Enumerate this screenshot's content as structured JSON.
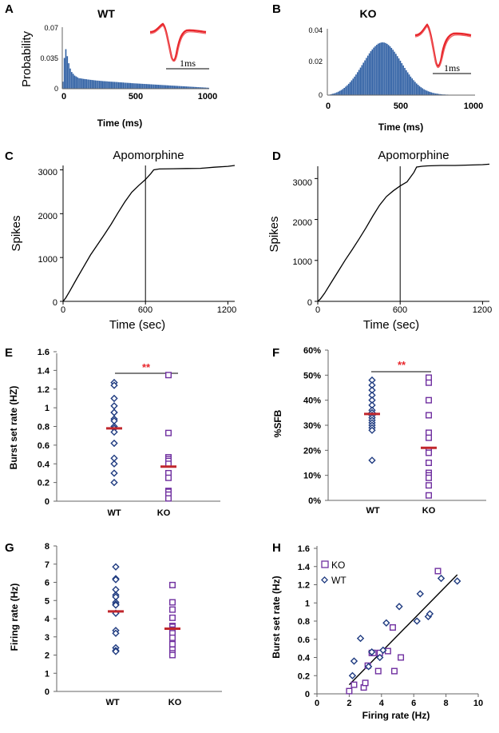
{
  "colors": {
    "wt": "#1f3b80",
    "ko": "#7030a0",
    "hist": "#2e5fa3",
    "mean": "#c0272d",
    "wave": "#e8262b",
    "sig": "#e8262b"
  },
  "panels": {
    "A": "A",
    "B": "B",
    "C": "C",
    "D": "D",
    "E": "E",
    "F": "F",
    "G": "G",
    "H": "H"
  },
  "scale_bar": "1ms",
  "chart_data": [
    {
      "id": "A",
      "type": "bar",
      "title": "WT",
      "xlabel": "Time (ms)",
      "ylabel": "Probability",
      "xlim": [
        0,
        1000
      ],
      "ylim": [
        0,
        0.07
      ],
      "xticks": [
        "0",
        "500",
        "1000"
      ],
      "yticks": [
        "0",
        "0.035",
        "0.07"
      ],
      "bin_width": 10,
      "values": [
        0.008,
        0.035,
        0.045,
        0.037,
        0.029,
        0.023,
        0.019,
        0.017,
        0.015,
        0.014,
        0.013,
        0.012,
        0.0118,
        0.0115,
        0.0112,
        0.011,
        0.0108,
        0.0105,
        0.0103,
        0.0101,
        0.0099,
        0.0097,
        0.0095,
        0.0093,
        0.0092,
        0.009,
        0.0089,
        0.0087,
        0.0086,
        0.0085,
        0.0084,
        0.0082,
        0.0081,
        0.008,
        0.0079,
        0.0078,
        0.0077,
        0.0076,
        0.0074,
        0.0073,
        0.0072,
        0.0071,
        0.0069,
        0.0068,
        0.0067,
        0.0066,
        0.0065,
        0.0063,
        0.0062,
        0.0061,
        0.006,
        0.0059,
        0.0058,
        0.0057,
        0.0056,
        0.0055,
        0.0054,
        0.0053,
        0.0052,
        0.0051,
        0.005,
        0.0049,
        0.0048,
        0.0047,
        0.0046,
        0.0045,
        0.0044,
        0.0043,
        0.0042,
        0.0041,
        0.004,
        0.0039,
        0.0038,
        0.0037,
        0.0036,
        0.0035,
        0.0034,
        0.0033,
        0.0032,
        0.0031,
        0.003,
        0.0029,
        0.0028,
        0.0027,
        0.0026,
        0.0025,
        0.0024,
        0.0023,
        0.0022,
        0.0021,
        0.002,
        0.0019,
        0.0018,
        0.0017,
        0.0016,
        0.0015,
        0.0014,
        0.0013,
        0.0012,
        0.0011
      ]
    },
    {
      "id": "B",
      "type": "bar",
      "title": "KO",
      "xlabel": "Time (ms)",
      "ylabel": "",
      "xlim": [
        0,
        1000
      ],
      "ylim": [
        0,
        0.04
      ],
      "xticks": [
        "0",
        "500",
        "1000"
      ],
      "yticks": [
        "0",
        "0.02",
        "0.04"
      ],
      "bin_width": 10,
      "values": [
        0.0002,
        0.0003,
        0.0005,
        0.0008,
        0.001,
        0.0013,
        0.0017,
        0.0021,
        0.0026,
        0.0031,
        0.0037,
        0.0044,
        0.0052,
        0.006,
        0.0069,
        0.0079,
        0.009,
        0.0101,
        0.0113,
        0.0126,
        0.014,
        0.0154,
        0.0168,
        0.0183,
        0.0198,
        0.0212,
        0.0227,
        0.0241,
        0.0255,
        0.0268,
        0.0279,
        0.029,
        0.0299,
        0.0307,
        0.0314,
        0.0318,
        0.0321,
        0.0322,
        0.0321,
        0.0318,
        0.0313,
        0.0306,
        0.0298,
        0.0288,
        0.0277,
        0.0265,
        0.0252,
        0.0238,
        0.0224,
        0.021,
        0.0195,
        0.0181,
        0.0166,
        0.0152,
        0.0139,
        0.0126,
        0.0113,
        0.0102,
        0.0091,
        0.0081,
        0.0071,
        0.0063,
        0.0055,
        0.0048,
        0.0042,
        0.0036,
        0.0031,
        0.0027,
        0.0023,
        0.002,
        0.0017,
        0.0014,
        0.0012,
        0.001,
        0.0009,
        0.0007,
        0.0006,
        0.0005,
        0.0004,
        0.0004,
        0.0003,
        0.0003,
        0.0002,
        0.0002,
        0.0002,
        0.0001,
        0.0001,
        0.0001,
        0.0001,
        0.0001,
        0.0001,
        0.0001,
        0.0001,
        0,
        0,
        0,
        0,
        0,
        0,
        0
      ]
    },
    {
      "id": "C",
      "type": "line",
      "title": "Apomorphine",
      "xlabel": "Time (sec)",
      "ylabel": "Spikes",
      "xlim": [
        0,
        1250
      ],
      "ylim": [
        0,
        3100
      ],
      "xticks": [
        "0",
        "600",
        "1200"
      ],
      "yticks": [
        "0",
        "1000",
        "2000",
        "3000"
      ],
      "marker_x": 600,
      "x": [
        0,
        20,
        50,
        100,
        150,
        200,
        250,
        300,
        350,
        400,
        450,
        500,
        550,
        600,
        640,
        660,
        700,
        800,
        900,
        1000,
        1100,
        1200,
        1250
      ],
      "y": [
        0,
        80,
        240,
        520,
        790,
        1060,
        1290,
        1520,
        1760,
        2020,
        2270,
        2490,
        2640,
        2780,
        2920,
        3000,
        3020,
        3025,
        3030,
        3035,
        3060,
        3080,
        3100
      ]
    },
    {
      "id": "D",
      "type": "line",
      "title": "Apomorphine",
      "xlabel": "Time (sec)",
      "ylabel": "Spikes",
      "xlim": [
        0,
        1250
      ],
      "ylim": [
        0,
        3300
      ],
      "xticks": [
        "0",
        "600",
        "1200"
      ],
      "yticks": [
        "0",
        "1000",
        "2000",
        "3000"
      ],
      "marker_x": 600,
      "x": [
        0,
        20,
        50,
        100,
        150,
        200,
        250,
        300,
        350,
        400,
        450,
        500,
        550,
        600,
        650,
        700,
        720,
        760,
        800,
        900,
        1000,
        1100,
        1200,
        1250
      ],
      "y": [
        0,
        60,
        200,
        470,
        740,
        1010,
        1260,
        1520,
        1790,
        2080,
        2350,
        2560,
        2700,
        2820,
        2920,
        3150,
        3280,
        3300,
        3310,
        3320,
        3320,
        3330,
        3340,
        3350
      ]
    },
    {
      "id": "E",
      "type": "scatter",
      "ylabel": "Burst set rate (HZ)",
      "categories": [
        "WT",
        "KO"
      ],
      "ylim": [
        0,
        1.6
      ],
      "yticks": [
        "0",
        "0.2",
        "0.4",
        "0.6",
        "0.8",
        "1",
        "1.2",
        "1.4",
        "1.6"
      ],
      "significance": "**",
      "series": [
        {
          "name": "WT",
          "values": [
            1.27,
            1.24,
            1.1,
            1.02,
            0.95,
            0.95,
            0.88,
            0.86,
            0.8,
            0.78,
            0.74,
            0.62,
            0.46,
            0.4,
            0.3,
            0.2
          ],
          "mean": 0.78
        },
        {
          "name": "KO",
          "values": [
            1.35,
            0.73,
            0.47,
            0.45,
            0.43,
            0.4,
            0.3,
            0.25,
            0.11,
            0.1,
            0.07,
            0.03
          ],
          "mean": 0.37
        }
      ]
    },
    {
      "id": "F",
      "type": "scatter",
      "ylabel": "%SFB",
      "categories": [
        "WT",
        "KO"
      ],
      "ylim": [
        0,
        60
      ],
      "yticks": [
        "0%",
        "10%",
        "20%",
        "30%",
        "40%",
        "50%",
        "60%"
      ],
      "significance": "**",
      "series": [
        {
          "name": "WT",
          "values": [
            48,
            46,
            44,
            42,
            40,
            38,
            36,
            35,
            34,
            33,
            32,
            31,
            30,
            29,
            28,
            16
          ],
          "mean": 34.5
        },
        {
          "name": "KO",
          "values": [
            49,
            47,
            40,
            34,
            27,
            25,
            20,
            19,
            15,
            11,
            10,
            9,
            6,
            2
          ],
          "mean": 21
        }
      ]
    },
    {
      "id": "G",
      "type": "scatter",
      "ylabel": "Firing rate (Hz)",
      "categories": [
        "WT",
        "KO"
      ],
      "ylim": [
        0,
        8
      ],
      "yticks": [
        "0",
        "1",
        "2",
        "3",
        "4",
        "5",
        "6",
        "7",
        "8"
      ],
      "series": [
        {
          "name": "WT",
          "values": [
            6.85,
            6.2,
            6.15,
            5.6,
            5.3,
            5.2,
            4.9,
            4.8,
            4.75,
            4.3,
            3.35,
            3.2,
            2.4,
            2.25,
            2.2
          ],
          "mean": 4.4
        },
        {
          "name": "KO",
          "values": [
            5.85,
            4.9,
            4.5,
            4.05,
            3.6,
            3.55,
            3.4,
            3.2,
            2.95,
            2.6,
            2.3,
            2.1,
            2.0
          ],
          "mean": 3.45
        }
      ]
    },
    {
      "id": "H",
      "type": "scatter",
      "xlabel": "Firing rate (Hz)",
      "ylabel": "Burst set rate (Hz)",
      "xlim": [
        0,
        10
      ],
      "ylim": [
        0,
        1.6
      ],
      "xticks": [
        "0",
        "2",
        "4",
        "6",
        "8",
        "10"
      ],
      "yticks": [
        "0",
        "0.2",
        "0.4",
        "0.6",
        "0.8",
        "1",
        "1.2",
        "1.4",
        "1.6"
      ],
      "legend": [
        "KO",
        "WT"
      ],
      "trendline": {
        "x": [
          2.0,
          8.7
        ],
        "y": [
          0.1,
          1.31
        ]
      },
      "series": [
        {
          "name": "KO",
          "x": [
            2.0,
            2.3,
            2.9,
            3.0,
            3.15,
            3.4,
            3.5,
            3.8,
            3.9,
            4.4,
            4.7,
            4.8,
            5.2,
            7.5
          ],
          "y": [
            0.03,
            0.1,
            0.07,
            0.12,
            0.31,
            0.45,
            0.45,
            0.25,
            0.45,
            0.47,
            0.73,
            0.25,
            0.4,
            1.35
          ]
        },
        {
          "name": "WT",
          "x": [
            2.2,
            2.3,
            2.7,
            3.2,
            3.4,
            3.9,
            4.1,
            4.3,
            5.1,
            6.2,
            6.4,
            6.9,
            7.0,
            7.7,
            8.7
          ],
          "y": [
            0.2,
            0.36,
            0.61,
            0.3,
            0.46,
            0.4,
            0.48,
            0.78,
            0.96,
            0.8,
            1.1,
            0.85,
            0.88,
            1.27,
            1.24
          ]
        }
      ]
    }
  ]
}
